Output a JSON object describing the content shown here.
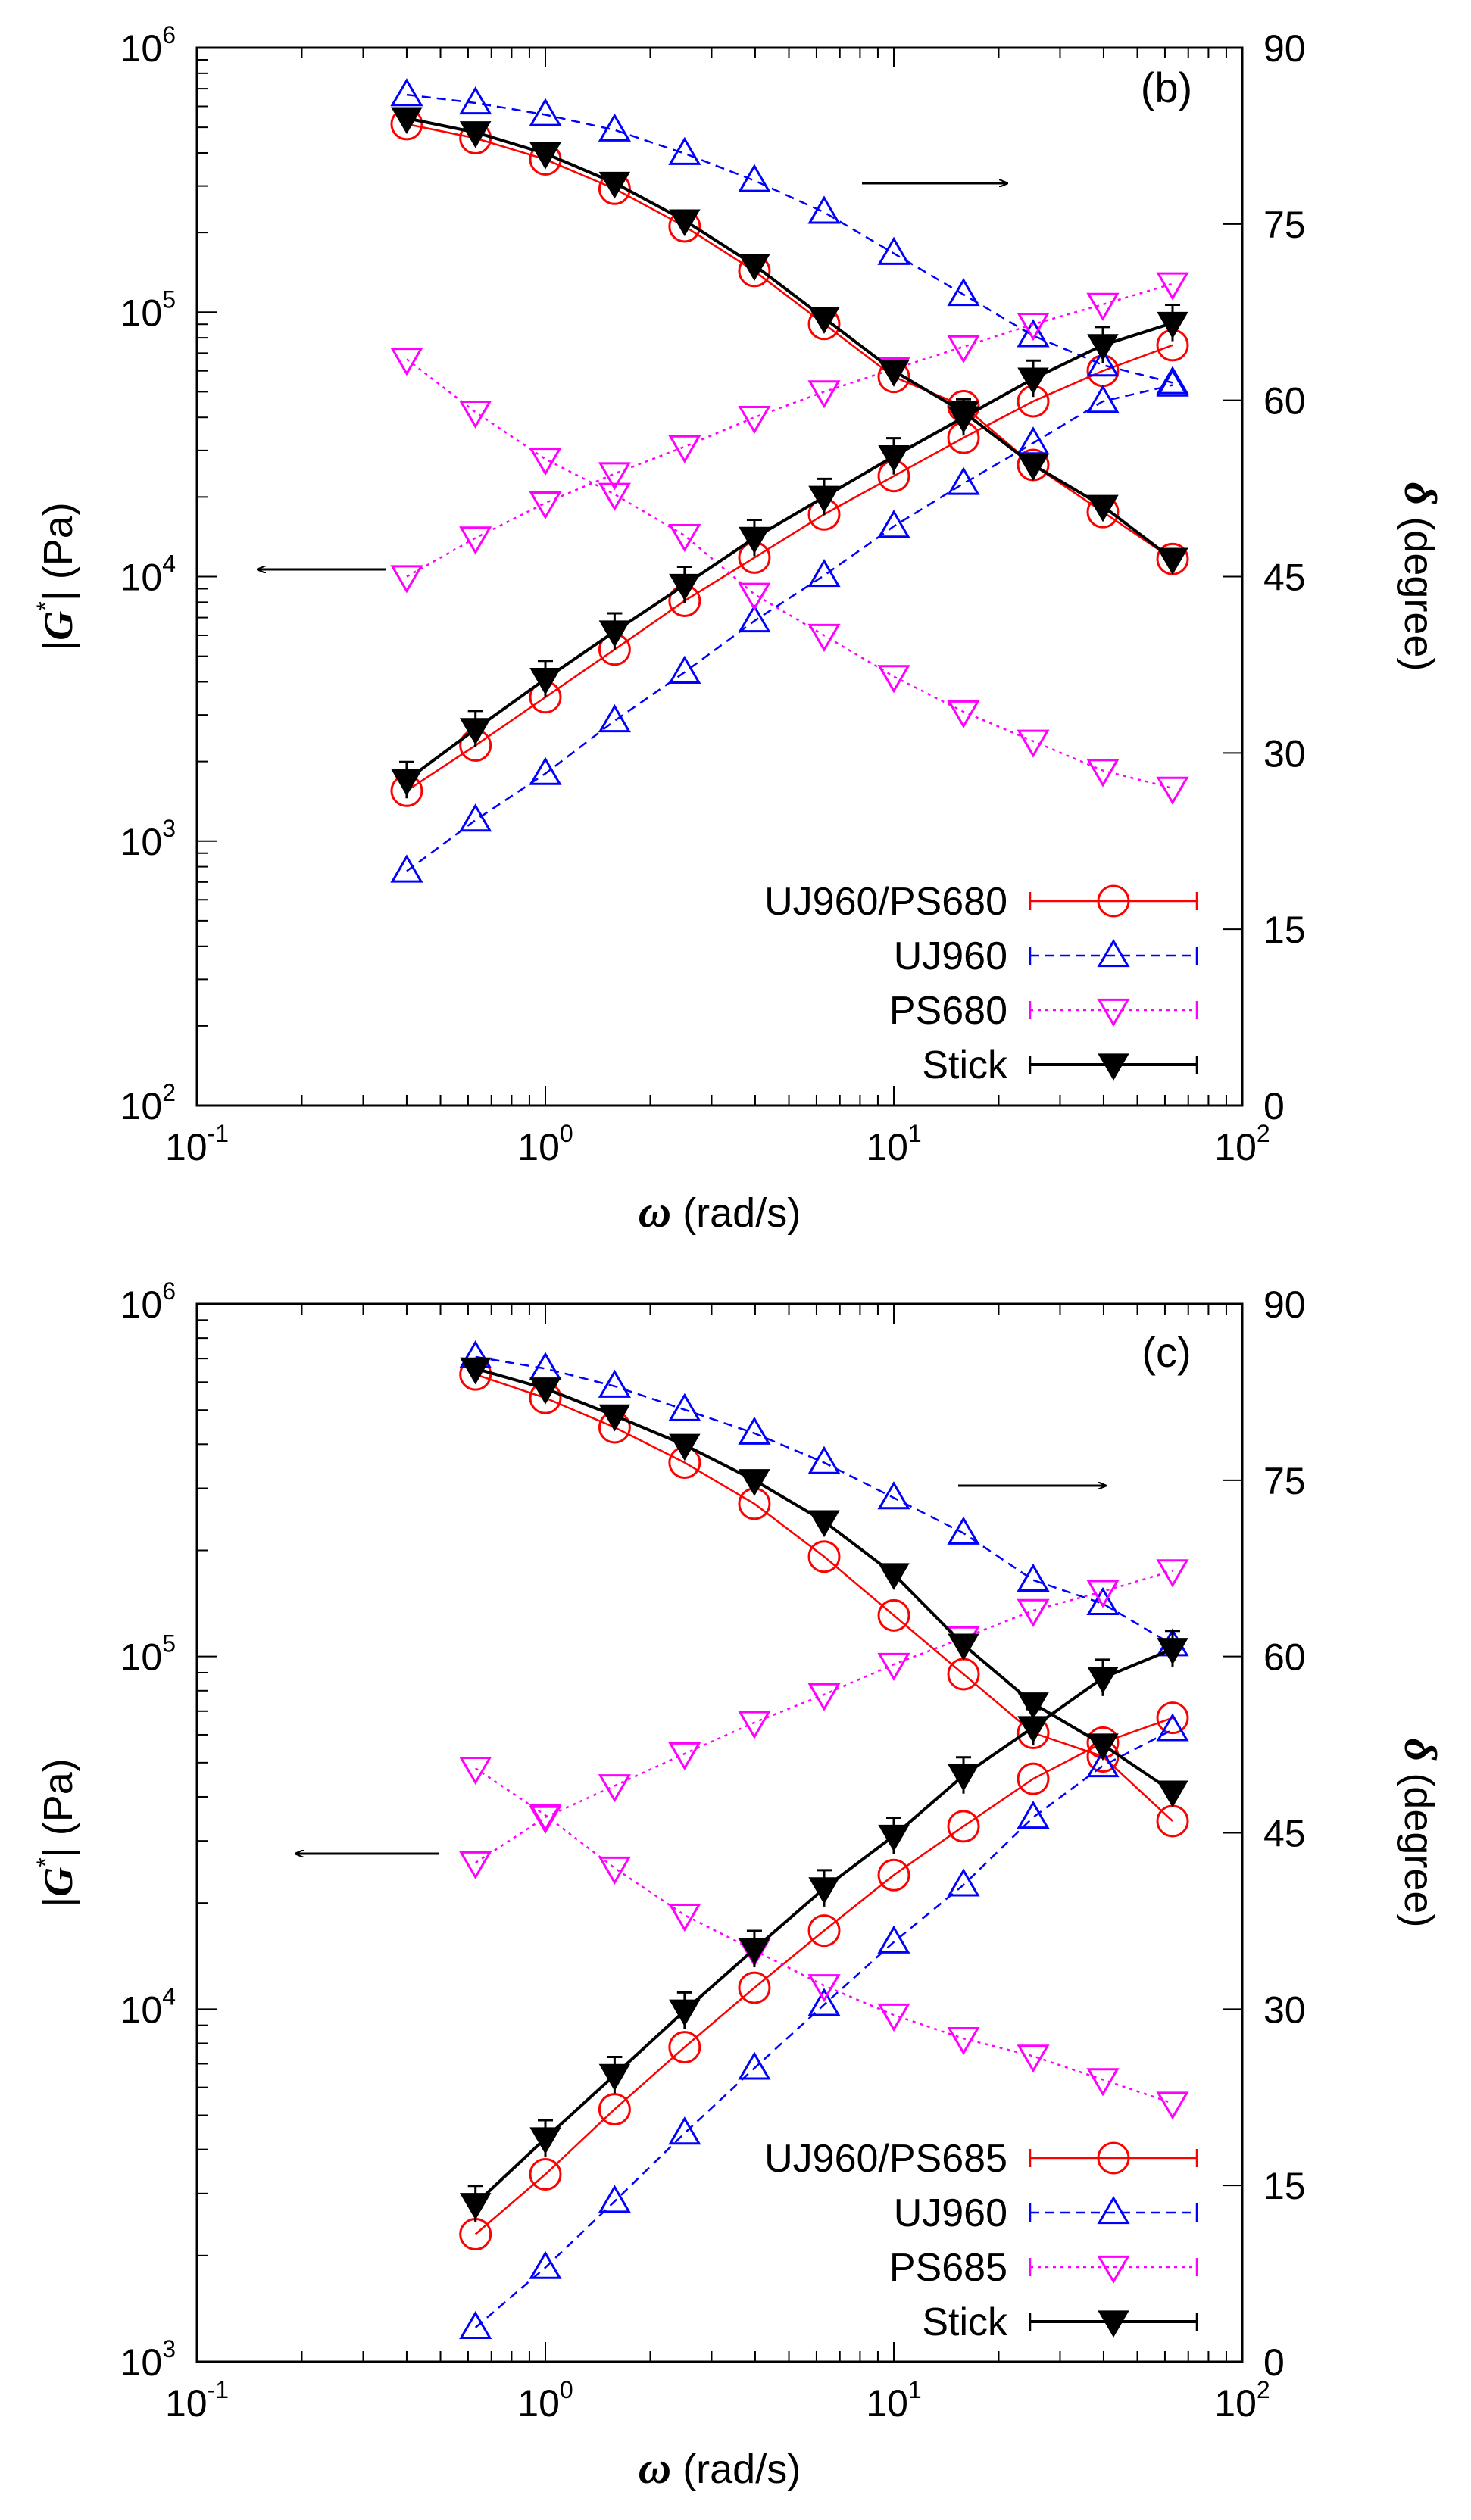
{
  "chart_data": [
    {
      "type": "line",
      "panel_label": "(b)",
      "xlabel_symbol": "ω",
      "xlabel_unit": "(rad/s)",
      "ylabel_left_pre": "|",
      "ylabel_left_symbol": "G",
      "ylabel_left_sup": "*",
      "ylabel_left_post": "| (Pa)",
      "ylabel_right_symbol": "δ",
      "ylabel_right_unit": "(degree)",
      "x_scale": "log",
      "xlim": [
        0.1,
        100
      ],
      "y_left_scale": "log",
      "y_left_lim": [
        100,
        1000000
      ],
      "y_right_lim": [
        0,
        90
      ],
      "x_ticks": [
        {
          "base": "10",
          "exp": "-1"
        },
        {
          "base": "10",
          "exp": "0"
        },
        {
          "base": "10",
          "exp": "1"
        },
        {
          "base": "10",
          "exp": "2"
        }
      ],
      "y_left_ticks": [
        {
          "base": "10",
          "exp": "2"
        },
        {
          "base": "10",
          "exp": "3"
        },
        {
          "base": "10",
          "exp": "4"
        },
        {
          "base": "10",
          "exp": "5"
        },
        {
          "base": "10",
          "exp": "6"
        }
      ],
      "y_right_ticks": [
        "0",
        "15",
        "30",
        "45",
        "60",
        "75",
        "90"
      ],
      "legend_position": "bottom-right",
      "x": [
        0.4,
        0.63,
        1.0,
        1.58,
        2.51,
        3.98,
        6.31,
        10.0,
        15.85,
        25.12,
        39.81,
        63.1
      ],
      "series": [
        {
          "name": "UJ960/PS680",
          "color": "#ff0000",
          "dash": "solid",
          "marker": "circle",
          "modulus": [
            1550,
            2300,
            3500,
            5300,
            8100,
            11800,
            17200,
            24000,
            33500,
            46000,
            60000,
            75000
          ],
          "phase": [
            83.5,
            82.3,
            80.5,
            78.0,
            74.8,
            71.0,
            66.5,
            62.0,
            59.5,
            54.5,
            50.5,
            46.5
          ]
        },
        {
          "name": "UJ960",
          "color": "#0000ff",
          "dash": "dashed",
          "marker": "triangle-up",
          "modulus": [
            770,
            1200,
            1800,
            2850,
            4350,
            6800,
            10100,
            15500,
            22500,
            32000,
            46000,
            53000
          ],
          "phase": [
            86.0,
            85.3,
            84.3,
            83.0,
            81.0,
            78.7,
            76.0,
            72.5,
            69.0,
            65.5,
            63.0,
            61.5
          ]
        },
        {
          "name": "PS680",
          "color": "#ff00ff",
          "dash": "dotted",
          "marker": "triangle-down",
          "modulus": [
            10000,
            14000,
            19000,
            24500,
            31000,
            40000,
            50000,
            61000,
            74000,
            90000,
            107000,
            128000
          ],
          "phase": [
            63.5,
            59.0,
            55.0,
            52.0,
            48.5,
            43.5,
            40.0,
            36.5,
            33.5,
            31.0,
            28.5,
            27.0
          ]
        },
        {
          "name": "Stick",
          "color": "#000000",
          "dash": "solid",
          "marker": "triangle-down-filled",
          "modulus": [
            1700,
            2650,
            4100,
            6200,
            9300,
            14000,
            20000,
            28500,
            40000,
            56000,
            75000,
            91000
          ],
          "phase": [
            84.0,
            82.8,
            81.0,
            78.5,
            75.3,
            71.5,
            67.0,
            62.5,
            59.0,
            54.5,
            51.0,
            46.5
          ]
        }
      ]
    },
    {
      "type": "line",
      "panel_label": "(c)",
      "xlabel_symbol": "ω",
      "xlabel_unit": "(rad/s)",
      "ylabel_left_pre": "|",
      "ylabel_left_symbol": "G",
      "ylabel_left_sup": "*",
      "ylabel_left_post": "| (Pa)",
      "ylabel_right_symbol": "δ",
      "ylabel_right_unit": "(degree)",
      "x_scale": "log",
      "xlim": [
        0.1,
        100
      ],
      "y_left_scale": "log",
      "y_left_lim": [
        1000,
        1000000
      ],
      "y_right_lim": [
        0,
        90
      ],
      "x_ticks": [
        {
          "base": "10",
          "exp": "-1"
        },
        {
          "base": "10",
          "exp": "0"
        },
        {
          "base": "10",
          "exp": "1"
        },
        {
          "base": "10",
          "exp": "2"
        }
      ],
      "y_left_ticks": [
        {
          "base": "10",
          "exp": "3"
        },
        {
          "base": "10",
          "exp": "4"
        },
        {
          "base": "10",
          "exp": "5"
        },
        {
          "base": "10",
          "exp": "6"
        }
      ],
      "y_right_ticks": [
        "0",
        "15",
        "30",
        "45",
        "60",
        "75",
        "90"
      ],
      "legend_position": "bottom-right",
      "x": [
        0.63,
        1.0,
        1.58,
        2.51,
        3.98,
        6.31,
        10.0,
        15.85,
        25.12,
        39.81,
        63.1
      ],
      "series": [
        {
          "name": "UJ960/PS685",
          "color": "#ff0000",
          "dash": "solid",
          "marker": "circle",
          "modulus": [
            2300,
            3400,
            5200,
            7800,
            11500,
            16700,
            24000,
            33000,
            45000,
            57000,
            67000
          ],
          "phase": [
            84.0,
            82.0,
            79.5,
            76.5,
            73.0,
            68.5,
            63.5,
            58.5,
            53.5,
            51.5,
            46.0
          ]
        },
        {
          "name": "UJ960",
          "color": "#0000ff",
          "dash": "dashed",
          "marker": "triangle-up",
          "modulus": [
            1250,
            1850,
            2850,
            4450,
            6800,
            10300,
            15500,
            22500,
            35000,
            49000,
            62000
          ],
          "phase": [
            85.5,
            84.5,
            83.0,
            81.0,
            79.0,
            76.5,
            73.5,
            70.5,
            66.5,
            64.5,
            61.0
          ]
        },
        {
          "name": "PS685",
          "color": "#ff00ff",
          "dash": "dotted",
          "marker": "triangle-down",
          "modulus": [
            26000,
            35000,
            43000,
            53000,
            65000,
            78000,
            95000,
            113000,
            135000,
            153000,
            175000
          ],
          "phase": [
            50.5,
            46.5,
            42.0,
            38.0,
            35.0,
            32.0,
            29.5,
            27.5,
            26.0,
            24.0,
            22.0
          ]
        },
        {
          "name": "Stick",
          "color": "#000000",
          "dash": "solid",
          "marker": "triangle-down-filled",
          "modulus": [
            2800,
            4300,
            6500,
            9900,
            14800,
            22000,
            31000,
            46000,
            63000,
            87000,
            105000
          ],
          "phase": [
            84.5,
            82.8,
            80.5,
            78.0,
            75.0,
            71.5,
            67.0,
            61.0,
            56.0,
            52.5,
            48.5
          ]
        }
      ]
    }
  ]
}
